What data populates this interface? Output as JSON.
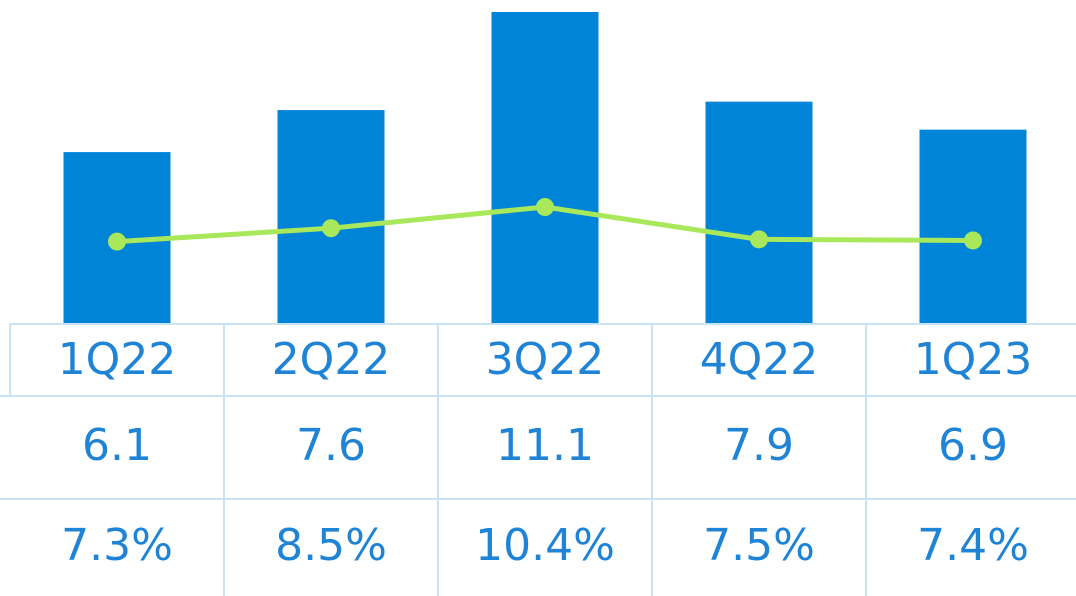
{
  "chart_data": {
    "type": "bar-line",
    "categories": [
      "1Q22",
      "2Q22",
      "3Q22",
      "4Q22",
      "1Q23"
    ],
    "series": [
      {
        "type": "bar",
        "color": "#0084d8",
        "values": [
          6.1,
          7.6,
          11.1,
          7.9,
          6.9
        ]
      },
      {
        "type": "line",
        "color": "#a9e85a",
        "values": [
          7.3,
          8.5,
          10.4,
          7.5,
          7.4
        ],
        "value_labels": [
          "7.3%",
          "8.5%",
          "10.4%",
          "7.5%",
          "7.4%"
        ]
      }
    ]
  }
}
